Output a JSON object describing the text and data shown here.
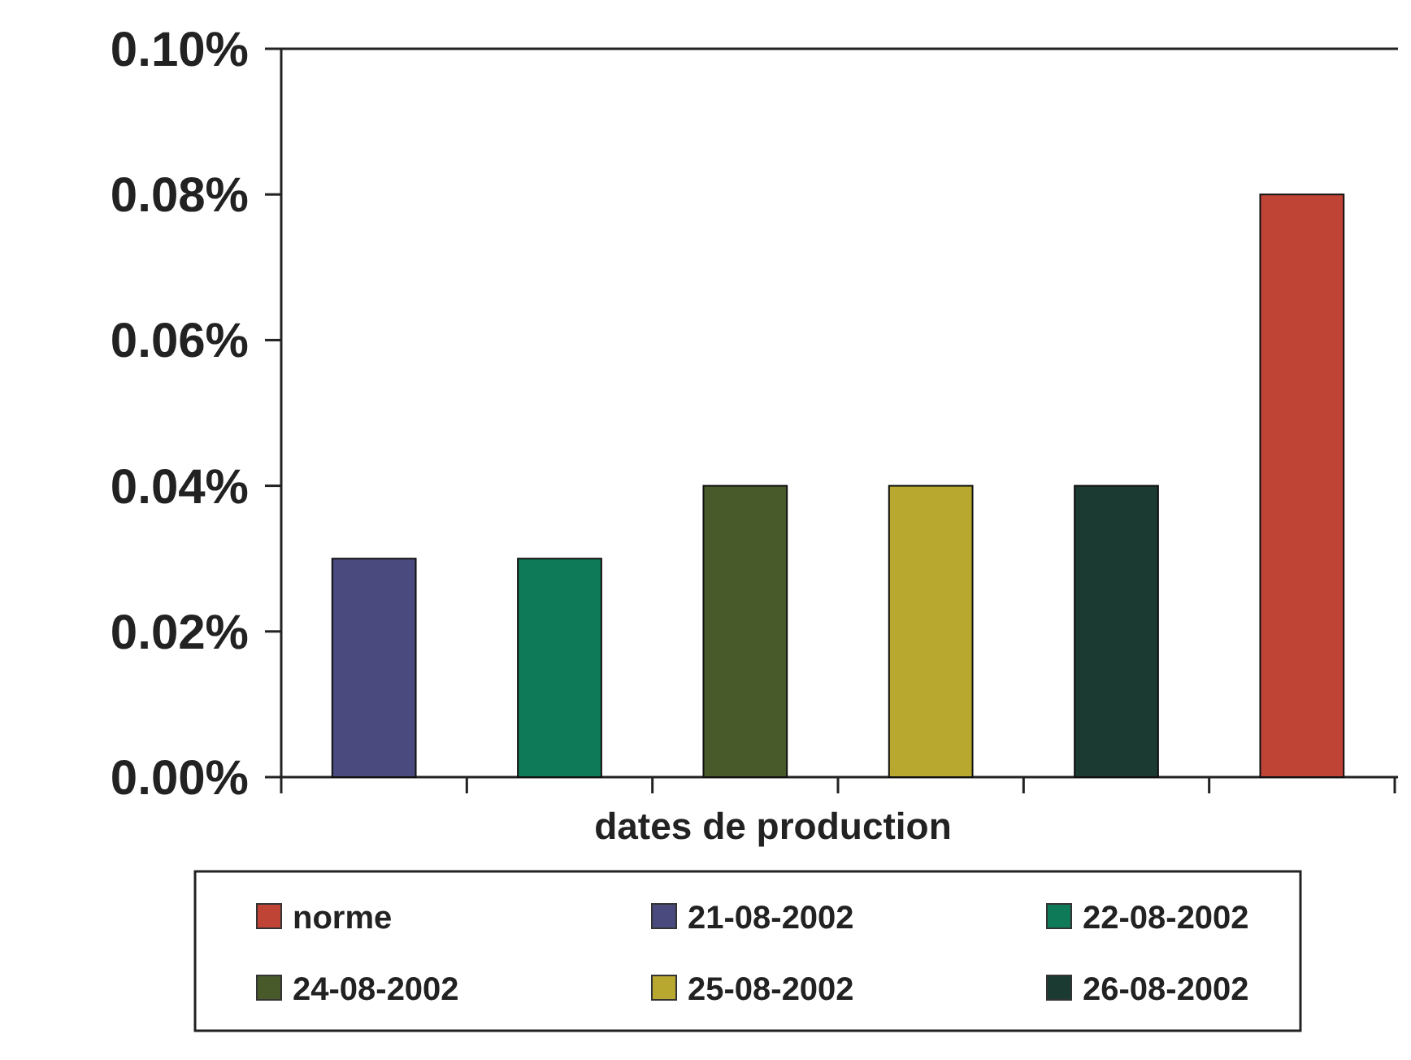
{
  "chart_data": {
    "type": "bar",
    "xlabel": "dates de production",
    "categories": [
      null,
      null,
      null,
      null,
      null,
      null
    ],
    "series": [
      {
        "name": "norme",
        "color": "#bf4436",
        "values": [
          null,
          null,
          null,
          null,
          null,
          0.08
        ]
      },
      {
        "name": "21-08-2002",
        "color": "#4b4a7e",
        "values": [
          0.03,
          null,
          null,
          null,
          null,
          null
        ]
      },
      {
        "name": "22-08-2002",
        "color": "#0f7a58",
        "values": [
          null,
          0.03,
          null,
          null,
          null,
          null
        ]
      },
      {
        "name": "24-08-2002",
        "color": "#495a2a",
        "values": [
          null,
          null,
          0.04,
          null,
          null,
          null
        ]
      },
      {
        "name": "25-08-2002",
        "color": "#b8a830",
        "values": [
          null,
          null,
          null,
          0.04,
          null,
          null
        ]
      },
      {
        "name": "26-08-2002",
        "color": "#1b3b32",
        "values": [
          null,
          null,
          null,
          null,
          0.04,
          null
        ]
      }
    ],
    "ylim": [
      0,
      0.1
    ],
    "yticks": [
      {
        "value": 0,
        "label": "0.00%"
      },
      {
        "value": 0.02,
        "label": "0.02%"
      },
      {
        "value": 0.04,
        "label": "0.04%"
      },
      {
        "value": 0.06,
        "label": "0.06%"
      },
      {
        "value": 0.08,
        "label": "0.08%"
      },
      {
        "value": 0.1,
        "label": "0.10%"
      }
    ],
    "grid": false,
    "legend": "bottom"
  }
}
